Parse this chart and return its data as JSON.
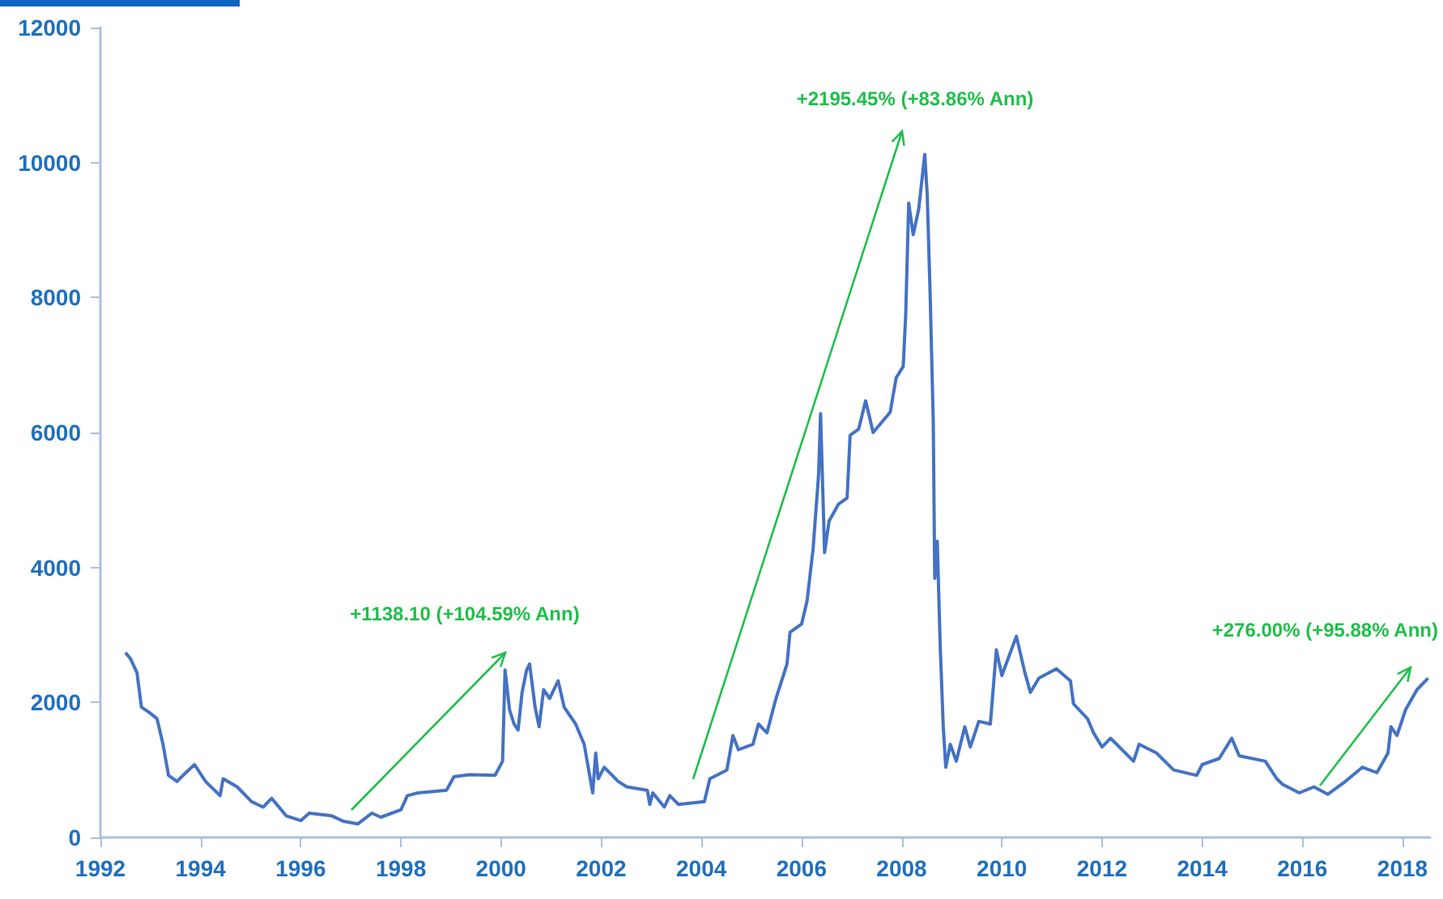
{
  "chart_data": {
    "type": "line",
    "x": [
      1992.5,
      1992.6,
      1992.73,
      1992.82,
      1992.98,
      1993.13,
      1993.25,
      1993.36,
      1993.53,
      1993.65,
      1993.88,
      1994.1,
      1994.39,
      1994.45,
      1994.73,
      1995.02,
      1995.25,
      1995.42,
      1995.71,
      1996.0,
      1996.17,
      1996.62,
      1996.85,
      1997.14,
      1997.42,
      1997.6,
      1998.0,
      1998.13,
      1998.34,
      1998.91,
      1999.06,
      1999.37,
      1999.88,
      2000.03,
      2000.08,
      2000.17,
      2000.26,
      2000.34,
      2000.42,
      2000.51,
      2000.57,
      2000.68,
      2000.76,
      2000.85,
      2000.97,
      2001.14,
      2001.26,
      2001.49,
      2001.66,
      2001.83,
      2001.89,
      2001.94,
      2002.06,
      2002.34,
      2002.51,
      2002.92,
      2002.97,
      2003.03,
      2003.26,
      2003.37,
      2003.54,
      2004.06,
      2004.17,
      2004.51,
      2004.63,
      2004.74,
      2005.03,
      2005.14,
      2005.31,
      2005.49,
      2005.71,
      2005.77,
      2006.0,
      2006.11,
      2006.23,
      2006.34,
      2006.38,
      2006.46,
      2006.55,
      2006.74,
      2006.91,
      2006.97,
      2007.14,
      2007.28,
      2007.43,
      2007.77,
      2007.89,
      2008.03,
      2008.08,
      2008.14,
      2008.23,
      2008.34,
      2008.46,
      2008.51,
      2008.57,
      2008.63,
      2008.66,
      2008.71,
      2008.77,
      2008.83,
      2008.88,
      2008.97,
      2009.09,
      2009.26,
      2009.37,
      2009.54,
      2009.77,
      2009.89,
      2010.0,
      2010.29,
      2010.46,
      2010.57,
      2010.74,
      2011.09,
      2011.37,
      2011.43,
      2011.71,
      2011.83,
      2012.0,
      2012.17,
      2012.63,
      2012.74,
      2013.09,
      2013.43,
      2013.89,
      2014.0,
      2014.34,
      2014.59,
      2014.74,
      2015.26,
      2015.49,
      2015.6,
      2015.94,
      2016.23,
      2016.51,
      2016.86,
      2017.2,
      2017.49,
      2017.71,
      2017.77,
      2017.89,
      2018.06,
      2018.29,
      2018.51
    ],
    "series": [
      {
        "color": "#4472c4",
        "values": [
          2740,
          2650,
          2440,
          1930,
          1850,
          1760,
          1380,
          920,
          830,
          920,
          1080,
          830,
          620,
          870,
          750,
          530,
          450,
          580,
          320,
          250,
          360,
          320,
          240,
          200,
          360,
          300,
          410,
          620,
          660,
          700,
          900,
          930,
          920,
          1130,
          2480,
          1890,
          1680,
          1590,
          2150,
          2480,
          2570,
          1930,
          1640,
          2190,
          2060,
          2320,
          1930,
          1680,
          1380,
          660,
          1250,
          870,
          1040,
          830,
          750,
          700,
          490,
          660,
          450,
          620,
          490,
          530,
          870,
          1000,
          1510,
          1300,
          1380,
          1680,
          1550,
          2060,
          2570,
          3040,
          3160,
          3500,
          4270,
          5370,
          6280,
          4220,
          4690,
          4940,
          5030,
          5960,
          6050,
          6470,
          6000,
          6300,
          6810,
          6980,
          7740,
          9400,
          8930,
          9310,
          10120,
          9520,
          8000,
          6170,
          3840,
          4390,
          2820,
          1640,
          1040,
          1380,
          1130,
          1640,
          1340,
          1720,
          1680,
          2780,
          2400,
          2980,
          2440,
          2150,
          2360,
          2500,
          2320,
          1980,
          1760,
          1550,
          1340,
          1470,
          1130,
          1380,
          1250,
          1000,
          920,
          1080,
          1170,
          1470,
          1210,
          1130,
          870,
          790,
          660,
          750,
          640,
          830,
          1040,
          960,
          1250,
          1640,
          1510,
          1890,
          2190,
          2360
        ]
      }
    ],
    "xlim": [
      1992,
      2018.55
    ],
    "xticks": [
      1992,
      1994,
      1996,
      1998,
      2000,
      2002,
      2004,
      2006,
      2008,
      2010,
      2012,
      2014,
      2016,
      2018
    ],
    "ylim": [
      0,
      12000
    ],
    "yticks": [
      0,
      2000,
      4000,
      6000,
      8000,
      10000,
      12000
    ],
    "grid": false,
    "marker": "none",
    "line_style": "solid",
    "annotations": [
      "+1138.10 (+104.59% Ann)",
      "+2195.45% (+83.86% Ann)",
      "+276.00% (+95.88% Ann)"
    ]
  }
}
